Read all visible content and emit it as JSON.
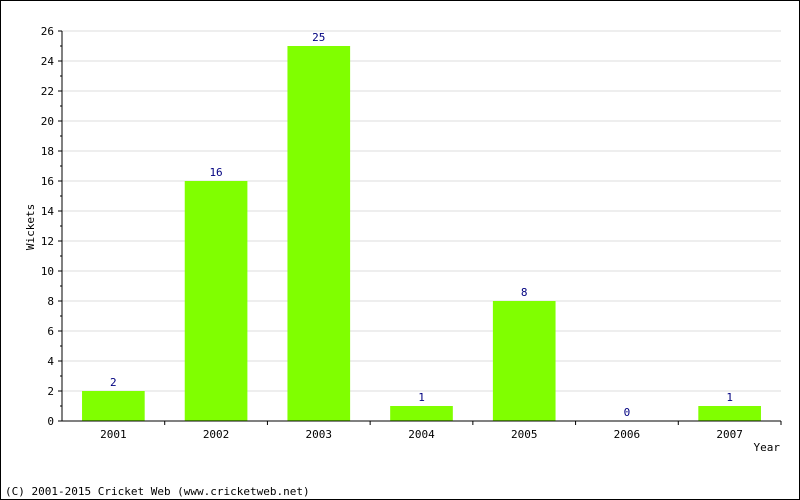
{
  "chart_data": {
    "type": "bar",
    "categories": [
      "2001",
      "2002",
      "2003",
      "2004",
      "2005",
      "2006",
      "2007"
    ],
    "values": [
      2,
      16,
      25,
      1,
      8,
      0,
      1
    ],
    "title": "",
    "xlabel": "Year",
    "ylabel": "Wickets",
    "ylim": [
      0,
      26
    ],
    "yticks": [
      0,
      2,
      4,
      6,
      8,
      10,
      12,
      14,
      16,
      18,
      20,
      22,
      24,
      26
    ],
    "grid": true,
    "data_labels": true,
    "bar_color": "#80ff00",
    "label_color": "#000080"
  },
  "footer": {
    "copyright": "(C) 2001-2015 Cricket Web (www.cricketweb.net)"
  }
}
